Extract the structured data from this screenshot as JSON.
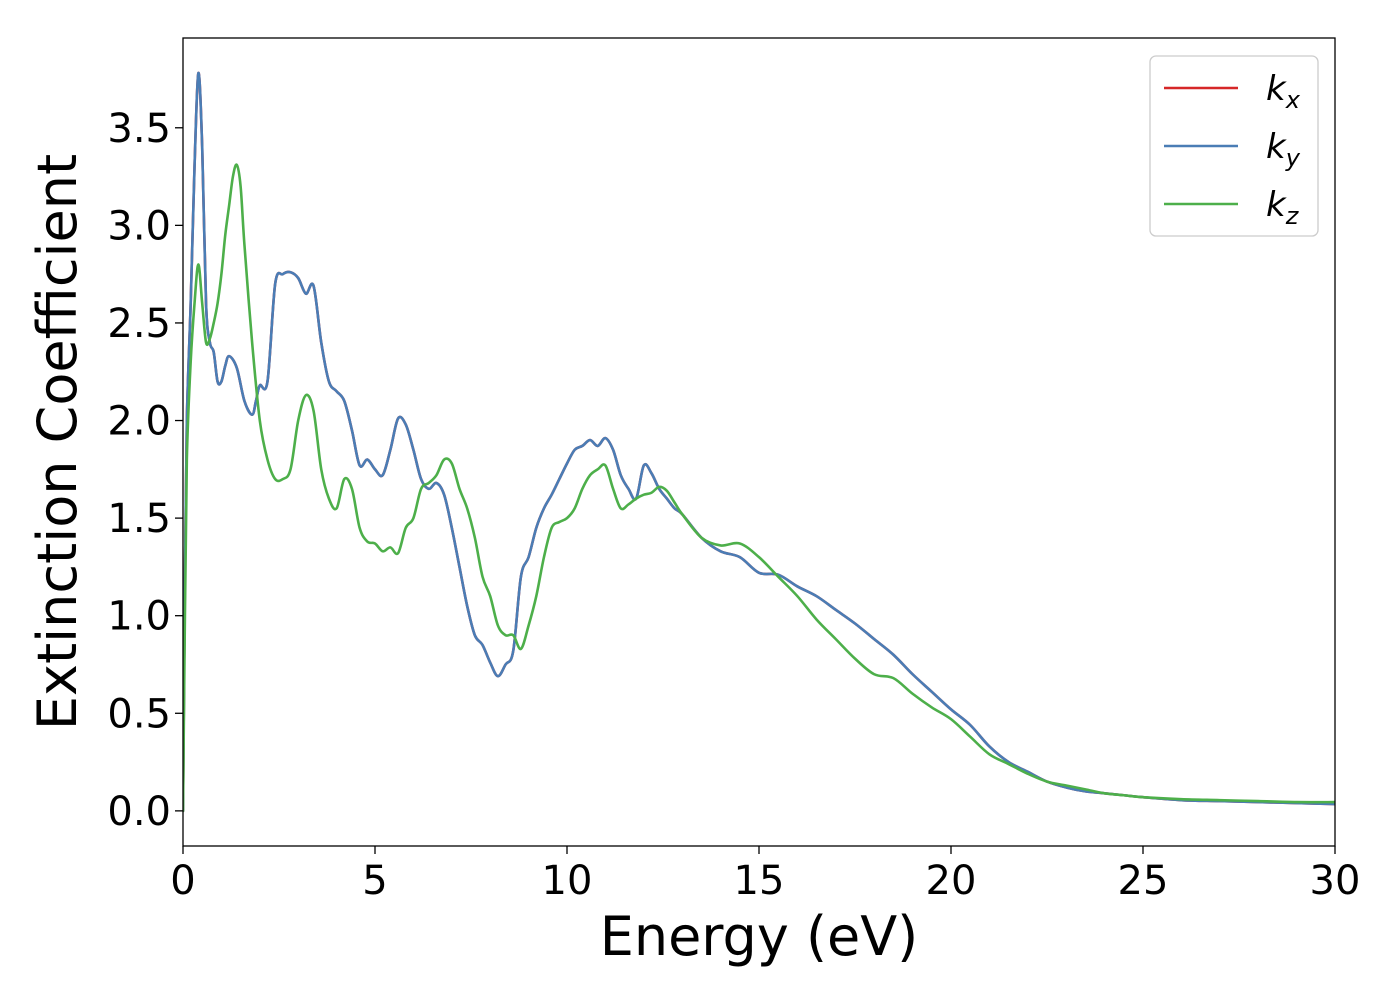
{
  "chart_data": {
    "type": "line",
    "title": "",
    "xlabel": "Energy (eV)",
    "ylabel": "Extinction Coefficient",
    "xlim": [
      0,
      30
    ],
    "ylim": [
      -0.18,
      3.96
    ],
    "xticks": [
      0,
      5,
      10,
      15,
      20,
      25,
      30
    ],
    "yticks": [
      0.0,
      0.5,
      1.0,
      1.5,
      2.0,
      2.5,
      3.0,
      3.5
    ],
    "ytick_labels": [
      "0.0",
      "0.5",
      "1.0",
      "1.5",
      "2.0",
      "2.5",
      "3.0",
      "3.5"
    ],
    "grid": false,
    "legend_position": "top-right",
    "series": [
      {
        "name": "k",
        "subscript": "x",
        "color": "#d62728",
        "x": [
          0,
          0.05,
          0.1,
          0.2,
          0.3,
          0.4,
          0.5,
          0.6,
          0.7,
          0.8,
          0.9,
          1.0,
          1.1,
          1.2,
          1.4,
          1.6,
          1.8,
          1.9,
          2.0,
          2.2,
          2.4,
          2.6,
          2.8,
          3.0,
          3.2,
          3.4,
          3.6,
          3.8,
          4.0,
          4.2,
          4.4,
          4.6,
          4.8,
          5.0,
          5.2,
          5.4,
          5.6,
          5.8,
          6.0,
          6.2,
          6.4,
          6.6,
          6.8,
          7.0,
          7.2,
          7.4,
          7.6,
          7.8,
          8.0,
          8.2,
          8.4,
          8.6,
          8.8,
          9.0,
          9.2,
          9.4,
          9.6,
          9.8,
          10.0,
          10.2,
          10.4,
          10.6,
          10.8,
          11.0,
          11.2,
          11.4,
          11.6,
          11.8,
          12.0,
          12.2,
          12.4,
          12.6,
          12.8,
          13.0,
          13.5,
          14.0,
          14.5,
          15.0,
          15.5,
          16.0,
          16.5,
          17.0,
          17.5,
          18.0,
          18.5,
          19.0,
          19.5,
          20.0,
          20.5,
          21.0,
          21.5,
          22.0,
          22.5,
          23.0,
          23.5,
          24.0,
          24.5,
          25.0,
          26.0,
          27.0,
          28.0,
          29.0,
          30.0
        ],
        "y": [
          0.0,
          1.2,
          2.0,
          2.6,
          3.3,
          3.78,
          3.4,
          2.6,
          2.4,
          2.35,
          2.2,
          2.2,
          2.28,
          2.33,
          2.27,
          2.1,
          2.03,
          2.1,
          2.18,
          2.2,
          2.7,
          2.75,
          2.76,
          2.73,
          2.65,
          2.69,
          2.4,
          2.2,
          2.15,
          2.1,
          1.95,
          1.77,
          1.8,
          1.75,
          1.72,
          1.85,
          2.01,
          1.98,
          1.85,
          1.7,
          1.65,
          1.68,
          1.62,
          1.45,
          1.25,
          1.05,
          0.9,
          0.85,
          0.76,
          0.69,
          0.75,
          0.82,
          1.2,
          1.3,
          1.45,
          1.55,
          1.62,
          1.7,
          1.78,
          1.85,
          1.87,
          1.9,
          1.87,
          1.91,
          1.85,
          1.72,
          1.65,
          1.6,
          1.77,
          1.73,
          1.65,
          1.6,
          1.55,
          1.52,
          1.4,
          1.33,
          1.3,
          1.22,
          1.21,
          1.15,
          1.1,
          1.03,
          0.96,
          0.88,
          0.8,
          0.7,
          0.61,
          0.52,
          0.44,
          0.33,
          0.25,
          0.2,
          0.15,
          0.12,
          0.1,
          0.09,
          0.08,
          0.07,
          0.055,
          0.05,
          0.045,
          0.04,
          0.035
        ]
      },
      {
        "name": "k",
        "subscript": "y",
        "color": "#4a7db5",
        "x": [
          0,
          0.05,
          0.1,
          0.2,
          0.3,
          0.4,
          0.5,
          0.6,
          0.7,
          0.8,
          0.9,
          1.0,
          1.1,
          1.2,
          1.4,
          1.6,
          1.8,
          1.9,
          2.0,
          2.2,
          2.4,
          2.6,
          2.8,
          3.0,
          3.2,
          3.4,
          3.6,
          3.8,
          4.0,
          4.2,
          4.4,
          4.6,
          4.8,
          5.0,
          5.2,
          5.4,
          5.6,
          5.8,
          6.0,
          6.2,
          6.4,
          6.6,
          6.8,
          7.0,
          7.2,
          7.4,
          7.6,
          7.8,
          8.0,
          8.2,
          8.4,
          8.6,
          8.8,
          9.0,
          9.2,
          9.4,
          9.6,
          9.8,
          10.0,
          10.2,
          10.4,
          10.6,
          10.8,
          11.0,
          11.2,
          11.4,
          11.6,
          11.8,
          12.0,
          12.2,
          12.4,
          12.6,
          12.8,
          13.0,
          13.5,
          14.0,
          14.5,
          15.0,
          15.5,
          16.0,
          16.5,
          17.0,
          17.5,
          18.0,
          18.5,
          19.0,
          19.5,
          20.0,
          20.5,
          21.0,
          21.5,
          22.0,
          22.5,
          23.0,
          23.5,
          24.0,
          24.5,
          25.0,
          26.0,
          27.0,
          28.0,
          29.0,
          30.0
        ],
        "y": [
          0.0,
          1.2,
          2.0,
          2.6,
          3.3,
          3.78,
          3.4,
          2.6,
          2.4,
          2.35,
          2.2,
          2.2,
          2.28,
          2.33,
          2.27,
          2.1,
          2.03,
          2.1,
          2.18,
          2.2,
          2.7,
          2.75,
          2.76,
          2.73,
          2.65,
          2.69,
          2.4,
          2.2,
          2.15,
          2.1,
          1.95,
          1.77,
          1.8,
          1.75,
          1.72,
          1.85,
          2.01,
          1.98,
          1.85,
          1.7,
          1.65,
          1.68,
          1.62,
          1.45,
          1.25,
          1.05,
          0.9,
          0.85,
          0.76,
          0.69,
          0.75,
          0.82,
          1.2,
          1.3,
          1.45,
          1.55,
          1.62,
          1.7,
          1.78,
          1.85,
          1.87,
          1.9,
          1.87,
          1.91,
          1.85,
          1.72,
          1.65,
          1.6,
          1.77,
          1.73,
          1.65,
          1.6,
          1.55,
          1.52,
          1.4,
          1.33,
          1.3,
          1.22,
          1.21,
          1.15,
          1.1,
          1.03,
          0.96,
          0.88,
          0.8,
          0.7,
          0.61,
          0.52,
          0.44,
          0.33,
          0.25,
          0.2,
          0.15,
          0.12,
          0.1,
          0.09,
          0.08,
          0.07,
          0.055,
          0.05,
          0.045,
          0.04,
          0.035
        ]
      },
      {
        "name": "k",
        "subscript": "z",
        "color": "#4daf4a",
        "x": [
          0,
          0.05,
          0.1,
          0.2,
          0.3,
          0.4,
          0.5,
          0.6,
          0.7,
          0.8,
          0.9,
          1.0,
          1.1,
          1.2,
          1.3,
          1.4,
          1.5,
          1.6,
          1.8,
          2.0,
          2.2,
          2.4,
          2.6,
          2.8,
          3.0,
          3.2,
          3.4,
          3.6,
          3.8,
          4.0,
          4.2,
          4.4,
          4.6,
          4.8,
          5.0,
          5.2,
          5.4,
          5.6,
          5.8,
          6.0,
          6.2,
          6.4,
          6.6,
          6.8,
          7.0,
          7.2,
          7.4,
          7.6,
          7.8,
          8.0,
          8.2,
          8.4,
          8.6,
          8.8,
          9.0,
          9.2,
          9.4,
          9.6,
          9.8,
          10.0,
          10.2,
          10.4,
          10.6,
          10.8,
          11.0,
          11.2,
          11.4,
          11.6,
          11.8,
          12.0,
          12.2,
          12.4,
          12.6,
          12.8,
          13.0,
          13.5,
          14.0,
          14.5,
          15.0,
          15.5,
          16.0,
          16.5,
          17.0,
          17.5,
          18.0,
          18.5,
          19.0,
          19.5,
          20.0,
          20.5,
          21.0,
          21.5,
          22.0,
          22.5,
          23.0,
          23.5,
          24.0,
          24.5,
          25.0,
          26.0,
          27.0,
          28.0,
          29.0,
          30.0
        ],
        "y": [
          0.0,
          1.0,
          1.8,
          2.3,
          2.6,
          2.8,
          2.6,
          2.4,
          2.42,
          2.5,
          2.6,
          2.75,
          2.95,
          3.1,
          3.25,
          3.31,
          3.2,
          2.9,
          2.4,
          2.0,
          1.8,
          1.7,
          1.7,
          1.75,
          2.0,
          2.13,
          2.05,
          1.75,
          1.6,
          1.55,
          1.7,
          1.65,
          1.45,
          1.38,
          1.37,
          1.33,
          1.35,
          1.32,
          1.45,
          1.5,
          1.65,
          1.68,
          1.72,
          1.8,
          1.78,
          1.65,
          1.55,
          1.4,
          1.2,
          1.1,
          0.95,
          0.9,
          0.9,
          0.83,
          0.95,
          1.1,
          1.3,
          1.45,
          1.48,
          1.5,
          1.55,
          1.65,
          1.72,
          1.75,
          1.77,
          1.65,
          1.55,
          1.57,
          1.6,
          1.62,
          1.63,
          1.66,
          1.64,
          1.58,
          1.52,
          1.4,
          1.36,
          1.37,
          1.3,
          1.2,
          1.1,
          0.98,
          0.88,
          0.78,
          0.7,
          0.68,
          0.6,
          0.53,
          0.47,
          0.38,
          0.29,
          0.24,
          0.19,
          0.15,
          0.13,
          0.11,
          0.09,
          0.08,
          0.07,
          0.06,
          0.055,
          0.05,
          0.045,
          0.045
        ]
      }
    ]
  }
}
